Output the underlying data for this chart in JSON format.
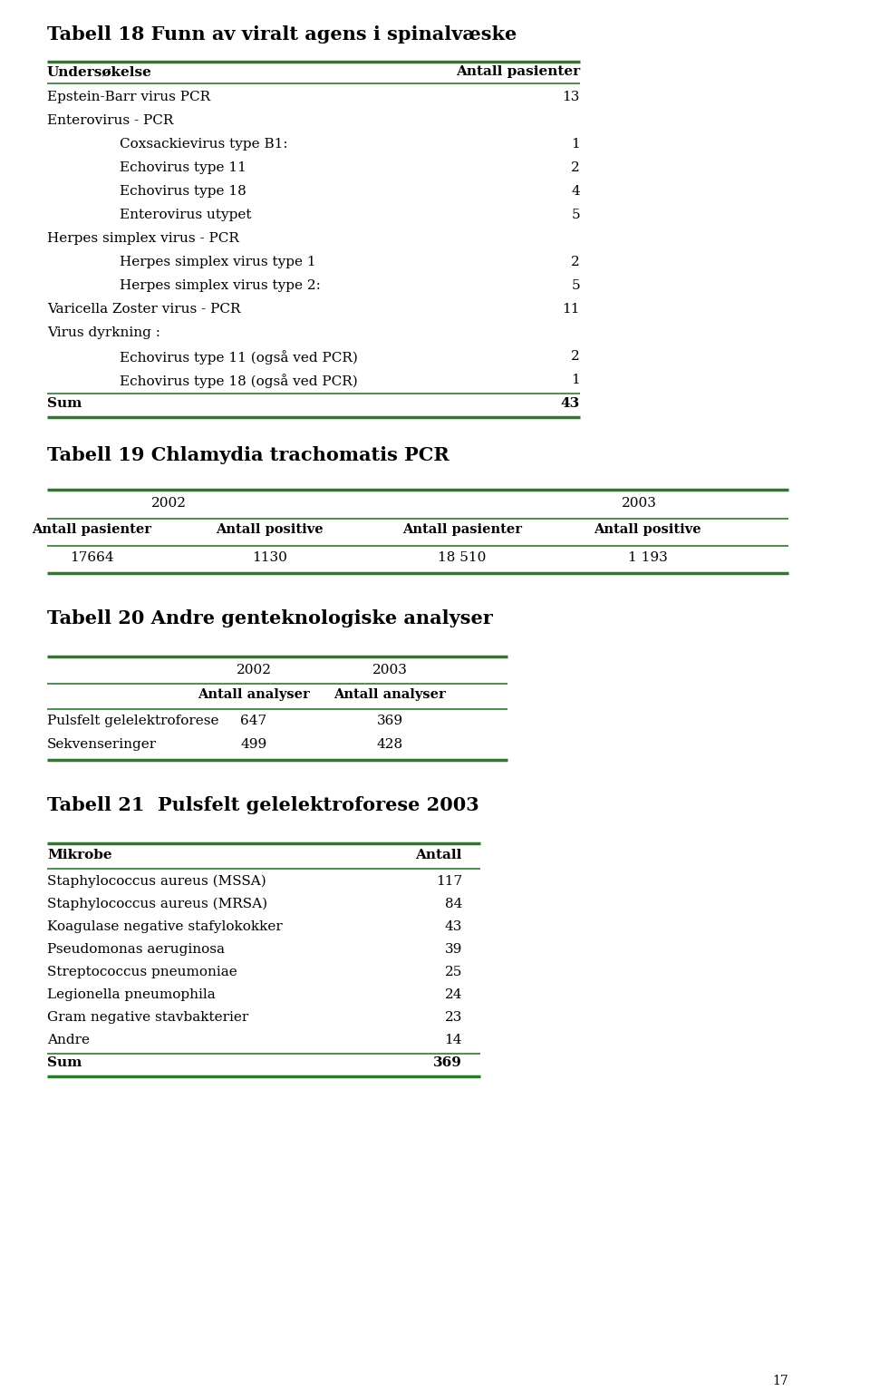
{
  "title18": "Tabell 18 Funn av viralt agens i spinalvæske",
  "title19": "Tabell 19 Chlamydia trachomatis PCR",
  "title20": "Tabell 20 Andre genteknologiske analyser",
  "title21": "Tabell 21  Pulsfelt gelelektroforese 2003",
  "t18_col1_header": "Undersøkelse",
  "t18_col2_header": "Antall pasienter",
  "t18_rows": [
    {
      "label": "Epstein-Barr virus PCR",
      "indent": 0,
      "value": "13",
      "bold": false
    },
    {
      "label": "Enterovirus - PCR",
      "indent": 0,
      "value": "",
      "bold": false
    },
    {
      "label": "Coxsackievirus type B1:",
      "indent": 1,
      "value": "1",
      "bold": false
    },
    {
      "label": "Echovirus type 11",
      "indent": 1,
      "value": "2",
      "bold": false
    },
    {
      "label": "Echovirus type 18",
      "indent": 1,
      "value": "4",
      "bold": false
    },
    {
      "label": "Enterovirus utypet",
      "indent": 1,
      "value": "5",
      "bold": false
    },
    {
      "label": "Herpes simplex virus - PCR",
      "indent": 0,
      "value": "",
      "bold": false
    },
    {
      "label": "Herpes simplex virus type 1",
      "indent": 1,
      "value": "2",
      "bold": false
    },
    {
      "label": "Herpes simplex virus type 2:",
      "indent": 1,
      "value": "5",
      "bold": false
    },
    {
      "label": "Varicella Zoster virus - PCR",
      "indent": 0,
      "value": "11",
      "bold": false
    },
    {
      "label": "Virus dyrkning :",
      "indent": 0,
      "value": "",
      "bold": false
    },
    {
      "label": "Echovirus type 11 (også ved PCR)",
      "indent": 1,
      "value": "2",
      "bold": false
    },
    {
      "label": "Echovirus type 18 (også ved PCR)",
      "indent": 1,
      "value": "1",
      "bold": false
    },
    {
      "label": "Sum",
      "indent": 0,
      "value": "43",
      "bold": true
    }
  ],
  "t19_year_headers": [
    "2002",
    "2003"
  ],
  "t19_col_headers": [
    "Antall pasienter",
    "Antall positive",
    "Antall pasienter",
    "Antall positive"
  ],
  "t19_data": [
    "17664",
    "1130",
    "18 510",
    "1 193"
  ],
  "t20_year_headers": [
    "2002",
    "2003"
  ],
  "t20_col_headers": [
    "Antall analyser",
    "Antall analyser"
  ],
  "t20_rows": [
    {
      "label": "Pulsfelt gelelektroforese",
      "v2002": "647",
      "v2003": "369"
    },
    {
      "label": "Sekvenseringer",
      "v2002": "499",
      "v2003": "428"
    }
  ],
  "t21_col1_header": "Mikrobe",
  "t21_col2_header": "Antall",
  "t21_rows": [
    {
      "label": "Staphylococcus aureus (MSSA)",
      "value": "117",
      "bold": false
    },
    {
      "label": "Staphylococcus aureus (MRSA)",
      "value": "84",
      "bold": false
    },
    {
      "label": "Koagulase negative stafylokokker",
      "value": "43",
      "bold": false
    },
    {
      "label": "Pseudomonas aeruginosa",
      "value": "39",
      "bold": false
    },
    {
      "label": "Streptococcus pneumoniae",
      "value": "25",
      "bold": false
    },
    {
      "label": "Legionella pneumophila",
      "value": "24",
      "bold": false
    },
    {
      "label": "Gram negative stavbakterier",
      "value": "23",
      "bold": false
    },
    {
      "label": "Andre",
      "value": "14",
      "bold": false
    },
    {
      "label": "Sum",
      "value": "369",
      "bold": true
    }
  ],
  "green_color": "#2d7a2d",
  "bg_color": "#ffffff",
  "text_color": "#000000",
  "page_number": "17",
  "font_family": "DejaVu Serif"
}
